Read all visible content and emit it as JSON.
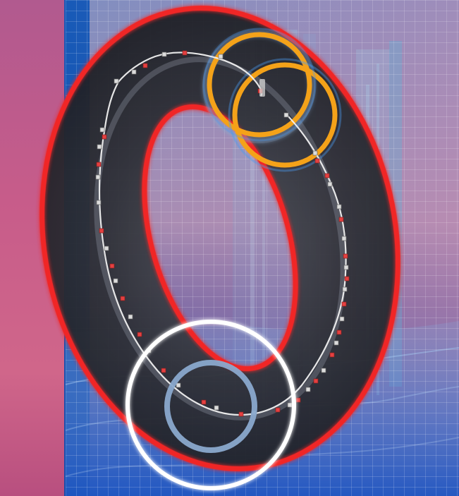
{
  "scene": {
    "background_colors": {
      "left_panel": "#c75c8a",
      "blue_band": "#1257b7",
      "sky": "#8f92c0",
      "floor": "#2e59b8"
    },
    "ring_colors": {
      "outline": "#f02828",
      "body": "#2d2f36",
      "highlight": "#8f96a3",
      "path": "#f0f0f0",
      "orange_ring": "#f4a219",
      "white_ring": "#ffffff",
      "blue_ring": "#8aa9ce"
    },
    "icons": [
      "ring-editor-icon",
      "camera-ring-icon",
      "target-ring-icon"
    ]
  }
}
